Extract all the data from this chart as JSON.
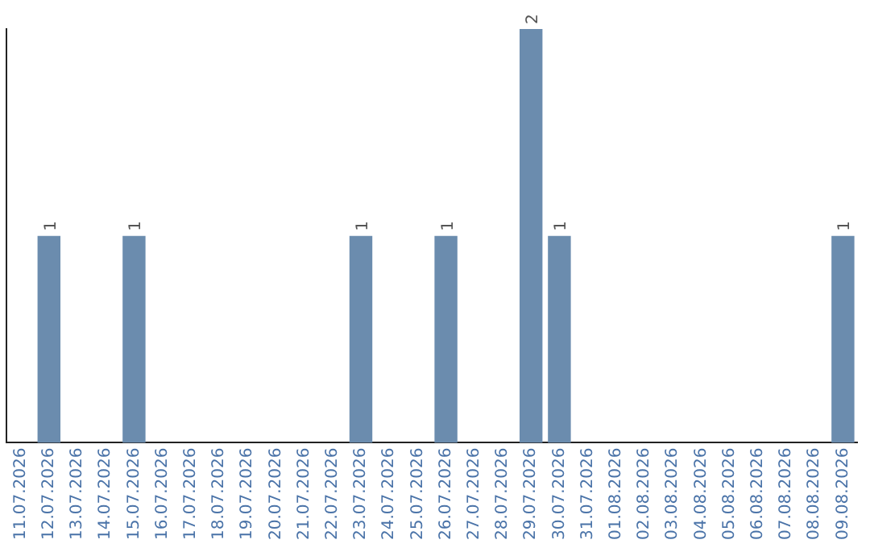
{
  "chart_data": {
    "type": "bar",
    "categories": [
      "11.07.2026",
      "12.07.2026",
      "13.07.2026",
      "14.07.2026",
      "15.07.2026",
      "16.07.2026",
      "17.07.2026",
      "18.07.2026",
      "19.07.2026",
      "20.07.2026",
      "21.07.2026",
      "22.07.2026",
      "23.07.2026",
      "24.07.2026",
      "25.07.2026",
      "26.07.2026",
      "27.07.2026",
      "28.07.2026",
      "29.07.2026",
      "30.07.2026",
      "31.07.2026",
      "01.08.2026",
      "02.08.2026",
      "03.08.2026",
      "04.08.2026",
      "05.08.2026",
      "06.08.2026",
      "07.08.2026",
      "08.08.2026",
      "09.08.2026"
    ],
    "values": [
      0,
      1,
      0,
      0,
      1,
      0,
      0,
      0,
      0,
      0,
      0,
      0,
      1,
      0,
      0,
      1,
      0,
      0,
      2,
      1,
      0,
      0,
      0,
      0,
      0,
      0,
      0,
      0,
      0,
      1
    ],
    "value_labels": [
      null,
      "1",
      null,
      null,
      "1",
      null,
      null,
      null,
      null,
      null,
      null,
      null,
      "1",
      null,
      null,
      "1",
      null,
      null,
      "2",
      "1",
      null,
      null,
      null,
      null,
      null,
      null,
      null,
      null,
      null,
      "1"
    ],
    "color": "#6b8cae",
    "grid": false,
    "tick_labels": "x"
  }
}
